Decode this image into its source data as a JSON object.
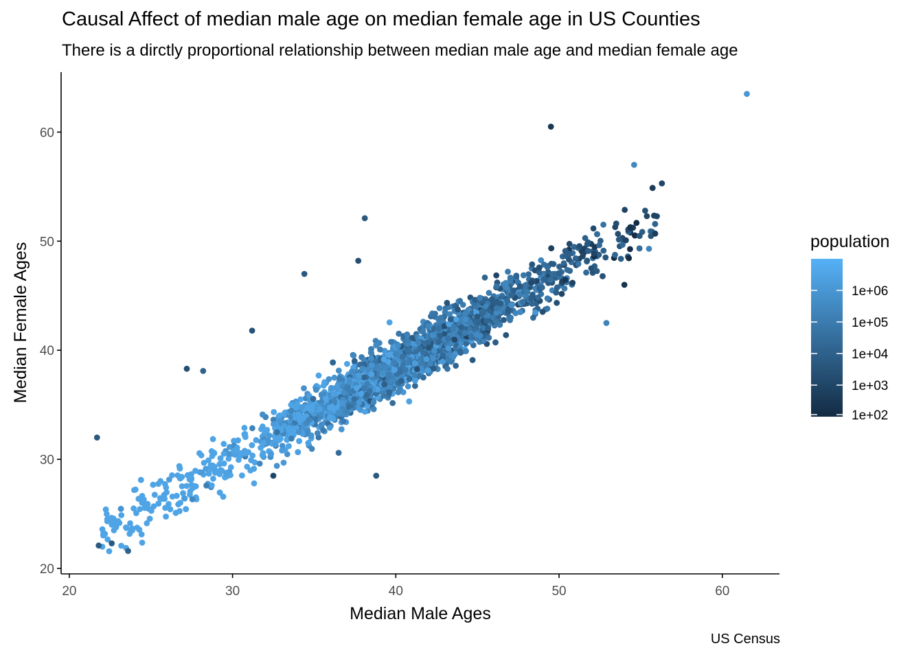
{
  "title": "Causal Affect of median male age on median female age in US Counties",
  "subtitle": "There is a dirctly proportional relationship between median male age and median female age",
  "caption": "US Census",
  "chart_data": {
    "type": "scatter",
    "title": "Causal Affect of median male age on median female age in US Counties",
    "subtitle": "There is a dirctly proportional relationship between median male age and median female age",
    "xlabel": "Median Male Ages",
    "ylabel": "Median Female Ages",
    "xlim": [
      19.5,
      63.5
    ],
    "ylim": [
      19.5,
      65.5
    ],
    "xticks": [
      20,
      30,
      40,
      50,
      60
    ],
    "yticks": [
      20,
      30,
      40,
      50,
      60
    ],
    "grid": false,
    "color_scale": {
      "name": "population",
      "scale": "log10",
      "low_color": "#132B43",
      "high_color": "#56B1F7",
      "domain": [
        100,
        10000000
      ],
      "breaks": [
        "1e+02",
        "1e+03",
        "1e+04",
        "1e+05",
        "1e+06"
      ],
      "legend_position": "right"
    },
    "notable_points": [
      {
        "x": 61.5,
        "y": 63.5,
        "population": 1000000
      },
      {
        "x": 49.5,
        "y": 60.5,
        "population": 300
      },
      {
        "x": 54.0,
        "y": 46.0,
        "population": 200
      },
      {
        "x": 52.9,
        "y": 42.5,
        "population": 200000
      },
      {
        "x": 21.7,
        "y": 32.0,
        "population": 5000
      },
      {
        "x": 38.8,
        "y": 28.5,
        "population": 5000
      },
      {
        "x": 36.5,
        "y": 30.6,
        "population": 30000
      },
      {
        "x": 38.1,
        "y": 52.1,
        "population": 5000
      },
      {
        "x": 56.3,
        "y": 55.3,
        "population": 1000
      },
      {
        "x": 54.6,
        "y": 57.0,
        "population": 300000
      },
      {
        "x": 23.6,
        "y": 21.6,
        "population": 10000
      },
      {
        "x": 21.8,
        "y": 22.1,
        "population": 5000
      },
      {
        "x": 22.6,
        "y": 22.3,
        "population": 5000
      },
      {
        "x": 34.4,
        "y": 47.0,
        "population": 5000
      },
      {
        "x": 37.7,
        "y": 48.2,
        "population": 2000
      },
      {
        "x": 32.5,
        "y": 28.5,
        "population": 1000
      },
      {
        "x": 27.2,
        "y": 38.3,
        "population": 2000
      },
      {
        "x": 28.2,
        "y": 38.1,
        "population": 10000
      },
      {
        "x": 31.2,
        "y": 41.8,
        "population": 3000
      },
      {
        "x": 44.7,
        "y": 39.1,
        "population": 5000
      }
    ],
    "cloud": {
      "trend": "female_age ≈ 0.85 × male_age + 4.5",
      "x_range": [
        22,
        56.5
      ],
      "n_points_approx": 3100
    }
  },
  "legend": {
    "title": "population",
    "labels": [
      "1e+06",
      "1e+05",
      "1e+04",
      "1e+03",
      "1e+02"
    ]
  }
}
